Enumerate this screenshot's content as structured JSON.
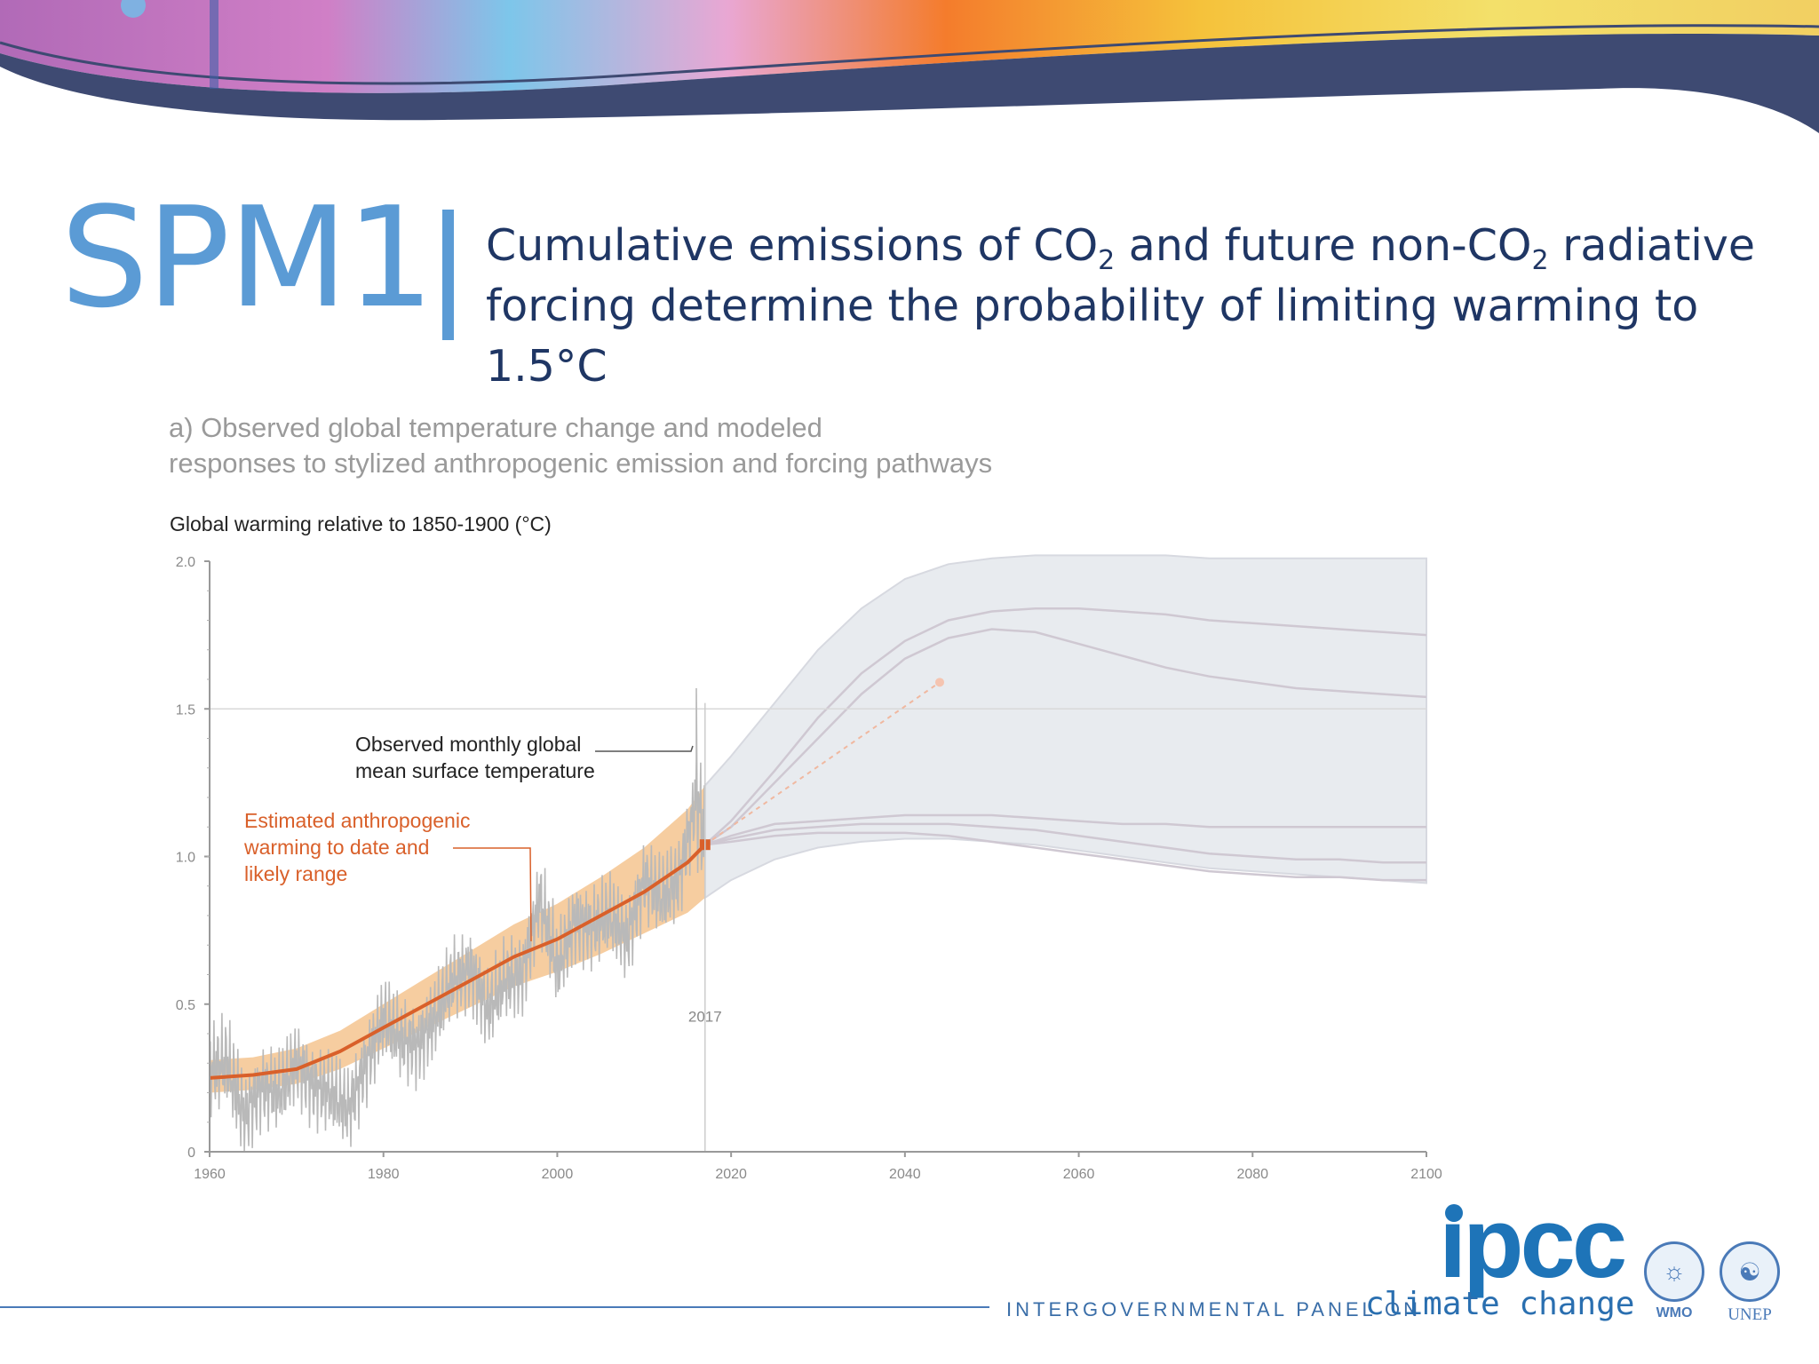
{
  "slide": {
    "spm_number": "SPM1",
    "title_parts": [
      "Cumulative emissions of CO",
      "2",
      " and future non-CO",
      "2",
      " radiative forcing determine the probability of limiting warming to 1.5°C"
    ]
  },
  "footer": {
    "logo_text": "ıpcc",
    "org_name": "INTERGOVERNMENTAL PANEL ON",
    "org_tagline": "climate change",
    "partners": [
      {
        "label": "WMO",
        "icon": "wmo-emblem-icon"
      },
      {
        "label": "UNEP",
        "icon": "unep-emblem-icon"
      }
    ]
  },
  "colors": {
    "accent_blue": "#5b9bd5",
    "title_navy": "#1f3664",
    "anthropogenic": "#d9602a",
    "likely_range": "#f5c48f",
    "observed": "#b9b9b9",
    "scenario_band": "#e8ebef"
  },
  "chart_data": {
    "type": "line",
    "title": "a) Observed global temperature change and modeled responses to stylized anthropogenic emission and forcing pathways",
    "ylabel": "Global warming relative to 1850-1900 (°C)",
    "xlabel": "",
    "xlim": [
      1960,
      2100
    ],
    "ylim": [
      0,
      2.0
    ],
    "x_ticks": [
      1960,
      1980,
      2000,
      2020,
      2040,
      2060,
      2080,
      2100
    ],
    "y_ticks": [
      0,
      0.5,
      1.0,
      1.5,
      2.0
    ],
    "y_tick_labels": [
      "0",
      "0.5",
      "1.0",
      "1.5",
      "2.0"
    ],
    "grid": false,
    "reference_line": {
      "y": 1.5
    },
    "marker_year": {
      "x": 2017,
      "label": "2017"
    },
    "annotations": [
      {
        "text": [
          "Observed monthly global",
          "mean surface temperature"
        ],
        "color": "#222222"
      },
      {
        "text": [
          "Estimated anthropogenic",
          "warming to date and",
          "likely range"
        ],
        "color": "#d9602a"
      }
    ],
    "series": [
      {
        "name": "Estimated anthropogenic warming to date",
        "x": [
          1960,
          1965,
          1970,
          1975,
          1980,
          1985,
          1990,
          1995,
          2000,
          2005,
          2010,
          2015,
          2017
        ],
        "y": [
          0.25,
          0.26,
          0.28,
          0.34,
          0.42,
          0.5,
          0.58,
          0.66,
          0.72,
          0.8,
          0.88,
          0.98,
          1.04
        ],
        "range_low": [
          0.2,
          0.21,
          0.23,
          0.28,
          0.35,
          0.42,
          0.49,
          0.56,
          0.61,
          0.67,
          0.74,
          0.81,
          0.86
        ],
        "range_high": [
          0.31,
          0.32,
          0.35,
          0.41,
          0.5,
          0.59,
          0.68,
          0.77,
          0.84,
          0.93,
          1.03,
          1.16,
          1.24
        ]
      },
      {
        "name": "Observed monthly global mean surface temperature",
        "x": [
          1960,
          1962,
          1964,
          1966,
          1968,
          1970,
          1972,
          1974,
          1976,
          1978,
          1980,
          1982,
          1984,
          1986,
          1988,
          1990,
          1992,
          1994,
          1996,
          1998,
          2000,
          2002,
          2004,
          2006,
          2008,
          2010,
          2012,
          2014,
          2016,
          2017
        ],
        "y": [
          0.28,
          0.3,
          0.12,
          0.22,
          0.2,
          0.3,
          0.22,
          0.2,
          0.14,
          0.3,
          0.45,
          0.38,
          0.36,
          0.46,
          0.58,
          0.62,
          0.48,
          0.58,
          0.6,
          0.86,
          0.62,
          0.78,
          0.76,
          0.8,
          0.72,
          0.92,
          0.86,
          0.92,
          1.2,
          1.05
        ],
        "amplitude": [
          0.18,
          0.18,
          0.16,
          0.16,
          0.16,
          0.16,
          0.16,
          0.16,
          0.16,
          0.16,
          0.16,
          0.16,
          0.16,
          0.16,
          0.16,
          0.16,
          0.16,
          0.16,
          0.16,
          0.18,
          0.16,
          0.16,
          0.16,
          0.16,
          0.16,
          0.16,
          0.16,
          0.16,
          0.24,
          0.18
        ],
        "peak": {
          "x": 2016,
          "y": 1.57
        }
      }
    ],
    "projection": {
      "x": [
        2017,
        2020,
        2025,
        2030,
        2035,
        2040,
        2045,
        2050,
        2055,
        2060,
        2065,
        2070,
        2075,
        2080,
        2085,
        2090,
        2095,
        2100
      ],
      "band_low": [
        0.86,
        0.92,
        0.99,
        1.03,
        1.05,
        1.06,
        1.06,
        1.05,
        1.04,
        1.02,
        1.0,
        0.98,
        0.96,
        0.95,
        0.94,
        0.93,
        0.92,
        0.91
      ],
      "band_high": [
        1.24,
        1.34,
        1.52,
        1.7,
        1.84,
        1.94,
        1.99,
        2.01,
        2.02,
        2.02,
        2.02,
        2.02,
        2.01,
        2.01,
        2.01,
        2.01,
        2.01,
        2.01
      ],
      "lines": [
        {
          "y": [
            1.04,
            1.12,
            1.29,
            1.47,
            1.62,
            1.73,
            1.8,
            1.83,
            1.84,
            1.84,
            1.83,
            1.82,
            1.8,
            1.79,
            1.78,
            1.77,
            1.76,
            1.75
          ]
        },
        {
          "y": [
            1.04,
            1.1,
            1.25,
            1.4,
            1.55,
            1.67,
            1.74,
            1.77,
            1.76,
            1.72,
            1.68,
            1.64,
            1.61,
            1.59,
            1.57,
            1.56,
            1.55,
            1.54
          ]
        },
        {
          "y": [
            1.04,
            1.07,
            1.11,
            1.12,
            1.13,
            1.14,
            1.14,
            1.14,
            1.13,
            1.12,
            1.11,
            1.11,
            1.1,
            1.1,
            1.1,
            1.1,
            1.1,
            1.1
          ]
        },
        {
          "y": [
            1.04,
            1.06,
            1.09,
            1.1,
            1.11,
            1.11,
            1.11,
            1.1,
            1.09,
            1.07,
            1.05,
            1.03,
            1.01,
            1.0,
            0.99,
            0.99,
            0.98,
            0.98
          ]
        },
        {
          "y": [
            1.04,
            1.05,
            1.07,
            1.08,
            1.08,
            1.08,
            1.07,
            1.05,
            1.03,
            1.01,
            0.99,
            0.97,
            0.95,
            0.94,
            0.93,
            0.93,
            0.92,
            0.92
          ]
        }
      ],
      "dashed_extension": {
        "x": [
          2017,
          2044
        ],
        "y": [
          1.04,
          1.59
        ]
      }
    }
  }
}
